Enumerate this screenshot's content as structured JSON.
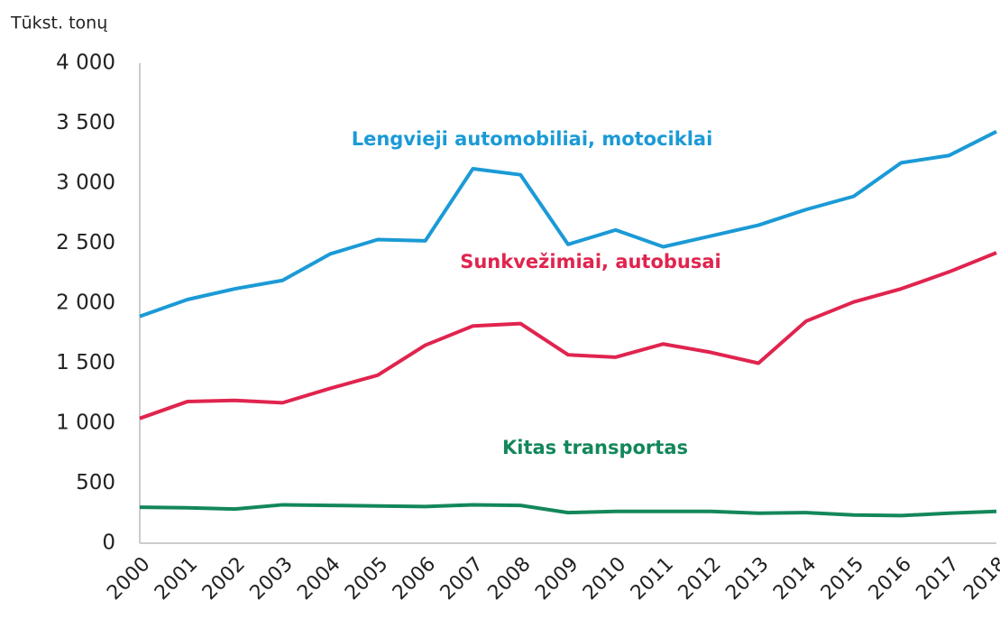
{
  "chart_data": {
    "type": "line",
    "y_label": "Tūkst. tonų",
    "x": [
      "2000",
      "2001",
      "2002",
      "2003",
      "2004",
      "2005",
      "2006",
      "2007",
      "2008",
      "2009",
      "2010",
      "2011",
      "2012",
      "2013",
      "2014",
      "2015",
      "2016",
      "2017",
      "2018"
    ],
    "series": [
      {
        "name": "Lengvieji automobiliai, motociklai",
        "color": "#1b9ad6",
        "values": [
          1890,
          2030,
          2120,
          2190,
          2410,
          2530,
          2520,
          3120,
          3070,
          2490,
          2610,
          2470,
          2560,
          2650,
          2780,
          2890,
          3170,
          3230,
          3430
        ]
      },
      {
        "name": "Sunkvežimiai, autobusai",
        "color": "#e0244e",
        "values": [
          1040,
          1180,
          1190,
          1170,
          1290,
          1400,
          1650,
          1810,
          1830,
          1570,
          1550,
          1660,
          1590,
          1500,
          1850,
          2010,
          2120,
          2260,
          2420
        ]
      },
      {
        "name": "Kitas transportas",
        "color": "#13875a",
        "values": [
          300,
          295,
          285,
          320,
          315,
          310,
          305,
          320,
          315,
          255,
          265,
          265,
          265,
          250,
          255,
          235,
          230,
          250,
          265
        ]
      }
    ],
    "ylim": [
      0,
      4000
    ],
    "yticks": [
      0,
      500,
      {
        "value": 1000,
        "label": "1 000"
      },
      {
        "value": 1500,
        "label": "1 500"
      },
      {
        "value": 2000,
        "label": "2 000"
      },
      {
        "value": 2500,
        "label": "2 500"
      },
      {
        "value": 3000,
        "label": "3 000"
      },
      {
        "value": 3500,
        "label": "3 500"
      },
      {
        "value": 4000,
        "label": "4 000"
      }
    ],
    "grid": false
  }
}
